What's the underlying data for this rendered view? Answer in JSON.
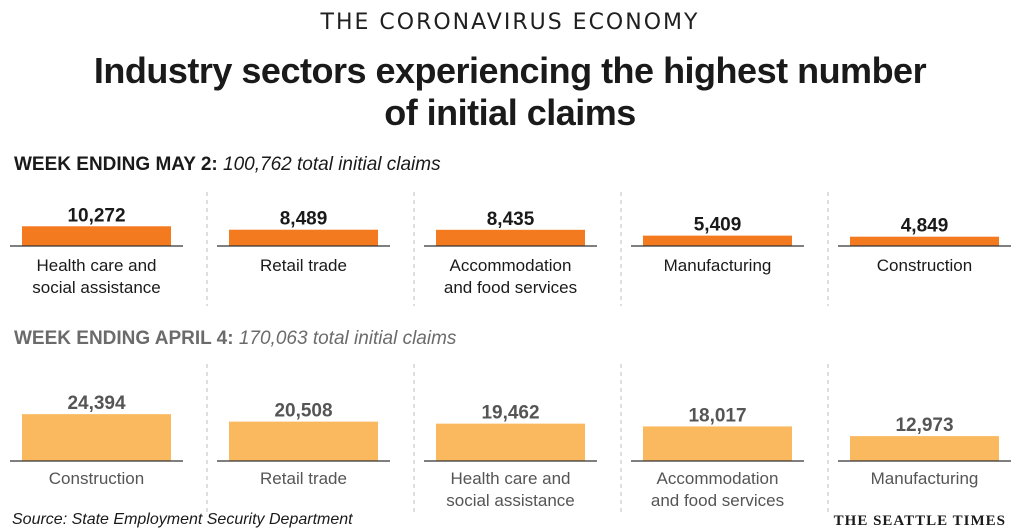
{
  "header": {
    "kicker": "THE CORONAVIRUS ECONOMY",
    "title_line1": "Industry sectors experiencing the highest number",
    "title_line2": "of initial claims"
  },
  "footer": {
    "source": "Source: State Employment Security Department",
    "logo": "THE SEATTLE TIMES"
  },
  "chart_data": [
    {
      "type": "bar",
      "week_label": "WEEK ENDING MAY 2:",
      "total_label": "100,762 total initial claims",
      "categories": [
        "Health care and social assistance",
        "Retail trade",
        "Accommodation and food services",
        "Manufacturing",
        "Construction"
      ],
      "category_lines": [
        [
          "Health care and",
          "social assistance"
        ],
        [
          "Retail trade"
        ],
        [
          "Accommodation",
          "and food services"
        ],
        [
          "Manufacturing"
        ],
        [
          "Construction"
        ]
      ],
      "values": [
        10272,
        8489,
        8435,
        5409,
        4849
      ],
      "value_labels": [
        "10,272",
        "8,489",
        "8,435",
        "5,409",
        "4,849"
      ],
      "color": "#f47a20",
      "label_color": "#1a1a1a",
      "value_color": "#1a1a1a",
      "heading_color": "#1a1a1a"
    },
    {
      "type": "bar",
      "week_label": "WEEK ENDING APRIL 4:",
      "total_label": "170,063 total initial claims",
      "categories": [
        "Construction",
        "Retail trade",
        "Health care and social assistance",
        "Accommodation and food services",
        "Manufacturing"
      ],
      "category_lines": [
        [
          "Construction"
        ],
        [
          "Retail trade"
        ],
        [
          "Health care and",
          "social assistance"
        ],
        [
          "Accommodation",
          "and food services"
        ],
        [
          "Manufacturing"
        ]
      ],
      "values": [
        24394,
        20508,
        19462,
        18017,
        12973
      ],
      "value_labels": [
        "24,394",
        "20,508",
        "19,462",
        "18,017",
        "12,973"
      ],
      "color": "#fbb95f",
      "label_color": "#555555",
      "value_color": "#555555",
      "heading_color": "#6b6b6b"
    }
  ]
}
